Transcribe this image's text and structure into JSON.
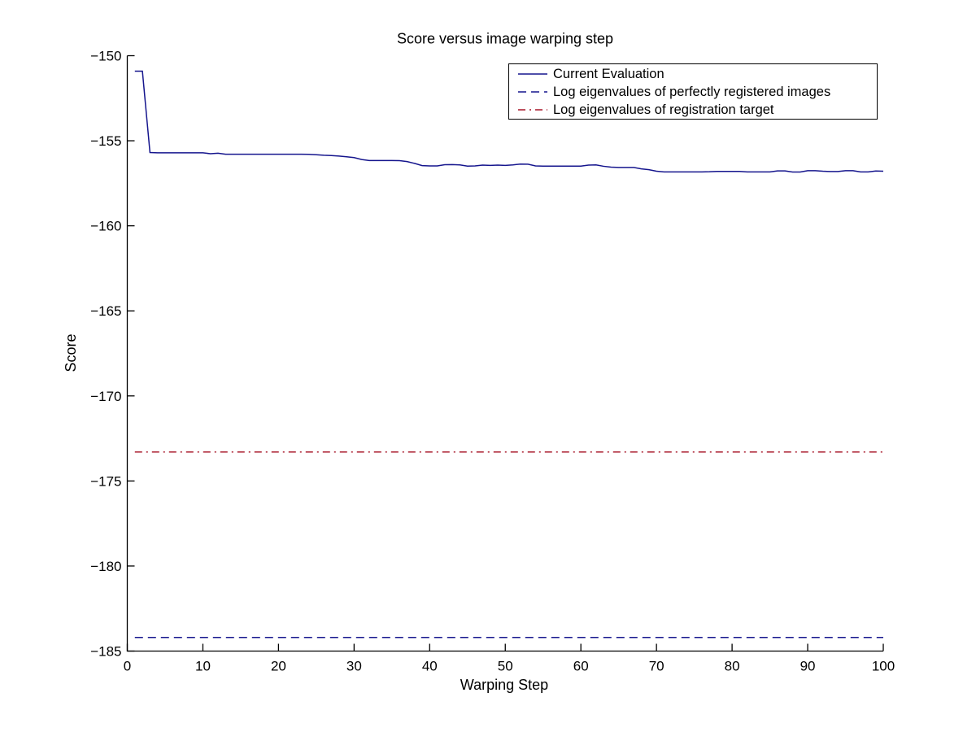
{
  "figure": {
    "background": "#ffffff",
    "text_color": "#000000"
  },
  "chart_data": {
    "type": "line",
    "title": "Score versus image warping step",
    "xlabel": "Warping Step",
    "ylabel": "Score",
    "xlim": [
      0,
      100
    ],
    "ylim": [
      -185,
      -150
    ],
    "xticks": [
      0,
      10,
      20,
      30,
      40,
      50,
      60,
      70,
      80,
      90,
      100
    ],
    "yticks": [
      -185,
      -180,
      -175,
      -170,
      -165,
      -160,
      -155,
      -150
    ],
    "grid": false,
    "legend": {
      "position": "top-right-inside",
      "border_color": "#000000",
      "background": "#ffffff"
    },
    "series": [
      {
        "name": "Current Evaluation",
        "color": "#15158d",
        "line_style": "solid",
        "x": [
          1,
          2,
          3,
          4,
          5,
          6,
          7,
          8,
          9,
          10,
          11,
          12,
          13,
          14,
          15,
          16,
          17,
          18,
          19,
          20,
          21,
          22,
          23,
          24,
          25,
          26,
          27,
          28,
          29,
          30,
          31,
          32,
          33,
          34,
          35,
          36,
          37,
          38,
          39,
          40,
          41,
          42,
          43,
          44,
          45,
          46,
          47,
          48,
          49,
          50,
          51,
          52,
          53,
          54,
          55,
          56,
          57,
          58,
          59,
          60,
          61,
          62,
          63,
          64,
          65,
          66,
          67,
          68,
          69,
          70,
          71,
          72,
          73,
          74,
          75,
          76,
          77,
          78,
          79,
          80,
          81,
          82,
          83,
          84,
          85,
          86,
          87,
          88,
          89,
          90,
          91,
          92,
          93,
          94,
          95,
          96,
          97,
          98,
          99,
          100
        ],
        "y": [
          -150.91,
          -150.91,
          -155.69,
          -155.71,
          -155.71,
          -155.71,
          -155.71,
          -155.71,
          -155.71,
          -155.71,
          -155.76,
          -155.73,
          -155.79,
          -155.79,
          -155.79,
          -155.79,
          -155.79,
          -155.79,
          -155.79,
          -155.79,
          -155.79,
          -155.79,
          -155.79,
          -155.8,
          -155.82,
          -155.85,
          -155.87,
          -155.9,
          -155.94,
          -155.99,
          -156.1,
          -156.16,
          -156.16,
          -156.16,
          -156.16,
          -156.17,
          -156.22,
          -156.33,
          -156.46,
          -156.48,
          -156.48,
          -156.41,
          -156.4,
          -156.42,
          -156.49,
          -156.48,
          -156.43,
          -156.45,
          -156.43,
          -156.45,
          -156.42,
          -156.37,
          -156.38,
          -156.48,
          -156.49,
          -156.49,
          -156.49,
          -156.49,
          -156.49,
          -156.49,
          -156.43,
          -156.42,
          -156.5,
          -156.55,
          -156.57,
          -156.57,
          -156.57,
          -156.65,
          -156.7,
          -156.79,
          -156.83,
          -156.83,
          -156.83,
          -156.83,
          -156.83,
          -156.83,
          -156.82,
          -156.8,
          -156.8,
          -156.8,
          -156.8,
          -156.83,
          -156.83,
          -156.83,
          -156.83,
          -156.77,
          -156.77,
          -156.84,
          -156.84,
          -156.76,
          -156.76,
          -156.79,
          -156.81,
          -156.81,
          -156.76,
          -156.76,
          -156.83,
          -156.83,
          -156.78,
          -156.79
        ]
      },
      {
        "name": "Log eigenvalues of perfectly registered images",
        "color": "#15158d",
        "line_style": "dashed",
        "x": [
          1,
          100
        ],
        "y": [
          -184.2,
          -184.2
        ]
      },
      {
        "name": "Log eigenvalues of registration target",
        "color": "#a81628",
        "line_style": "dashdot",
        "x": [
          1,
          100
        ],
        "y": [
          -173.3,
          -173.3
        ]
      }
    ]
  }
}
